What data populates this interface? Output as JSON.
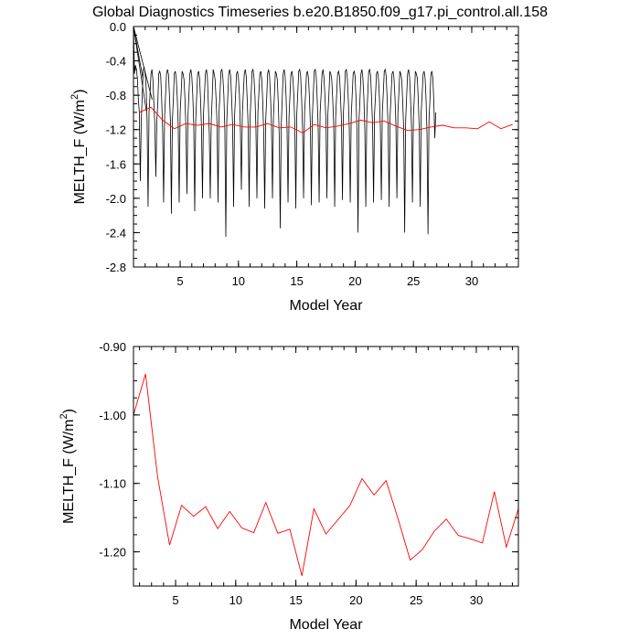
{
  "title": "Global Diagnostics Timeseries b.e20.B1850.f09_g17.pi_control.all.158",
  "colors": {
    "monthly": "#000000",
    "annual": "#ff0000",
    "frame": "#000000"
  },
  "chart_data": [
    {
      "type": "line",
      "name": "top",
      "xlabel": "Model Year",
      "ylabel_main": "MELTH_F (W/m",
      "ylabel_sup": "2",
      "ylabel_close": ")",
      "xlim": [
        1,
        34
      ],
      "ylim": [
        -2.8,
        0.0
      ],
      "xticks": [
        5,
        10,
        15,
        20,
        25,
        30
      ],
      "xtick_labels": [
        "5",
        "10",
        "15",
        "20",
        "25",
        "30"
      ],
      "yticks": [
        0.0,
        -0.4,
        -0.8,
        -1.2,
        -1.6,
        -2.0,
        -2.4,
        -2.8
      ],
      "ytick_labels": [
        "0.0",
        "-0.4",
        "-0.8",
        "-1.2",
        "-1.6",
        "-2.0",
        "-2.4",
        "-2.8"
      ],
      "monthly_start": 1.0,
      "monthly_step": 0.083333,
      "monthly_values": [
        0.0,
        -0.55,
        -0.45,
        -0.5,
        -0.6,
        -0.85,
        -1.0,
        -1.8,
        -1.1,
        -0.8,
        -0.5,
        -0.48,
        -0.55,
        -0.7,
        -1.1,
        -2.1,
        -1.0,
        -0.8,
        -0.55,
        -0.5,
        -0.62,
        -0.9,
        -1.15,
        -1.75,
        -1.1,
        -0.9,
        -0.55,
        -0.52,
        -0.58,
        -0.85,
        -1.2,
        -2.05,
        -1.05,
        -0.8,
        -0.55,
        -0.5,
        -0.56,
        -0.8,
        -1.1,
        -2.18,
        -1.1,
        -0.85,
        -0.55,
        -0.52,
        -0.6,
        -0.82,
        -1.15,
        -2.05,
        -1.0,
        -0.78,
        -0.52,
        -0.55,
        -0.62,
        -0.85,
        -1.2,
        -1.95,
        -1.05,
        -0.8,
        -0.55,
        -0.5,
        -0.58,
        -0.8,
        -1.15,
        -2.15,
        -1.1,
        -0.82,
        -0.55,
        -0.52,
        -0.6,
        -0.85,
        -1.2,
        -2.0,
        -1.02,
        -0.8,
        -0.55,
        -0.5,
        -0.58,
        -0.9,
        -1.25,
        -2.0,
        -1.1,
        -0.82,
        -0.5,
        -0.55,
        -0.62,
        -0.85,
        -1.15,
        -2.05,
        -1.0,
        -0.78,
        -0.52,
        -0.5,
        -0.6,
        -0.8,
        -1.2,
        -2.45,
        -1.1,
        -0.82,
        -0.55,
        -0.5,
        -0.58,
        -0.85,
        -1.15,
        -2.1,
        -1.05,
        -0.8,
        -0.55,
        -0.52,
        -0.6,
        -0.8,
        -1.2,
        -1.9,
        -1.02,
        -0.78,
        -0.55,
        -0.5,
        -0.58,
        -0.85,
        -1.18,
        -2.1,
        -1.05,
        -0.8,
        -0.52,
        -0.5,
        -0.6,
        -0.82,
        -1.2,
        -2.0,
        -1.0,
        -0.78,
        -0.55,
        -0.52,
        -0.62,
        -0.88,
        -1.25,
        -2.12,
        -1.1,
        -0.85,
        -0.55,
        -0.5,
        -0.58,
        -0.82,
        -1.15,
        -2.0,
        -1.05,
        -0.8,
        -0.52,
        -0.55,
        -0.62,
        -0.9,
        -1.3,
        -2.35,
        -1.15,
        -0.85,
        -0.55,
        -0.5,
        -0.58,
        -0.82,
        -1.2,
        -2.05,
        -1.05,
        -0.8,
        -0.55,
        -0.52,
        -0.6,
        -0.8,
        -1.15,
        -2.12,
        -1.02,
        -0.78,
        -0.52,
        -0.5,
        -0.58,
        -0.85,
        -1.2,
        -2.0,
        -1.0,
        -0.8,
        -0.55,
        -0.52,
        -0.6,
        -0.82,
        -1.15,
        -2.08,
        -1.05,
        -0.78,
        -0.52,
        -0.5,
        -0.58,
        -0.85,
        -1.18,
        -2.05,
        -1.0,
        -0.8,
        -0.55,
        -0.5,
        -0.6,
        -0.82,
        -1.1,
        -2.0,
        -1.02,
        -0.8,
        -0.52,
        -0.55,
        -0.62,
        -0.85,
        -1.15,
        -2.1,
        -1.05,
        -0.8,
        -0.55,
        -0.52,
        -0.58,
        -0.82,
        -1.12,
        -2.02,
        -1.0,
        -0.78,
        -0.52,
        -0.5,
        -0.6,
        -0.85,
        -1.18,
        -2.05,
        -1.05,
        -0.8,
        -0.55,
        -0.52,
        -0.58,
        -0.85,
        -1.25,
        -2.4,
        -1.1,
        -0.85,
        -0.55,
        -0.5,
        -0.6,
        -0.82,
        -1.2,
        -2.1,
        -1.05,
        -0.8,
        -0.52,
        -0.5,
        -0.58,
        -0.85,
        -1.15,
        -2.05,
        -1.02,
        -0.8,
        -0.55,
        -0.52,
        -0.6,
        -0.82,
        -1.18,
        -2.02,
        -1.0,
        -0.78,
        -0.52,
        -0.5,
        -0.58,
        -0.85,
        -1.2,
        -2.1,
        -1.05,
        -0.8,
        -0.55,
        -0.52,
        -0.6,
        -0.82,
        -1.15,
        -2.0,
        -1.02,
        -0.78,
        -0.52,
        -0.55,
        -0.62,
        -0.88,
        -1.2,
        -2.4,
        -1.1,
        -0.82,
        -0.55,
        -0.5,
        -0.58,
        -0.82,
        -1.15,
        -2.05,
        -1.05,
        -0.8,
        -0.52,
        -0.55,
        -0.6,
        -0.85,
        -1.2,
        -2.1,
        -1.0,
        -0.78,
        -0.55,
        -0.52,
        -0.6,
        -0.85,
        -1.25,
        -2.42,
        -1.1,
        -0.85,
        -0.55,
        -0.52,
        -0.6,
        -0.88,
        -1.3,
        -1.0
      ],
      "fan_lines": [
        [
          [
            1.0,
            0.0
          ],
          [
            2.6,
            -0.85
          ]
        ],
        [
          [
            1.0,
            0.0
          ],
          [
            2.1,
            -0.98
          ]
        ],
        [
          [
            1.0,
            0.0
          ],
          [
            1.8,
            -0.6
          ]
        ]
      ],
      "annual_x": [
        1.5,
        2.5,
        3.5,
        4.5,
        5.5,
        6.5,
        7.5,
        8.5,
        9.5,
        10.5,
        11.5,
        12.5,
        13.5,
        14.5,
        15.5,
        16.5,
        17.5,
        18.5,
        19.5,
        20.5,
        21.5,
        22.5,
        23.5,
        24.5,
        25.5,
        26.5,
        27.5,
        28.5,
        29.5,
        30.5,
        31.5,
        32.5,
        33.5
      ],
      "annual_values": [
        -1.0,
        -0.94,
        -1.09,
        -1.19,
        -1.13,
        -1.15,
        -1.13,
        -1.17,
        -1.14,
        -1.17,
        -1.17,
        -1.13,
        -1.18,
        -1.17,
        -1.24,
        -1.14,
        -1.18,
        -1.16,
        -1.13,
        -1.09,
        -1.12,
        -1.1,
        -1.16,
        -1.21,
        -1.2,
        -1.17,
        -1.15,
        -1.18,
        -1.18,
        -1.19,
        -1.11,
        -1.19,
        -1.14
      ]
    },
    {
      "type": "line",
      "name": "bottom",
      "xlabel": "Model Year",
      "ylabel_main": "MELTH_F (W/m",
      "ylabel_sup": "2",
      "ylabel_close": ")",
      "xlim": [
        1.5,
        33.5
      ],
      "ylim": [
        -1.25,
        -0.9
      ],
      "xticks": [
        5,
        10,
        15,
        20,
        25,
        30
      ],
      "xtick_labels": [
        "5",
        "10",
        "15",
        "20",
        "25",
        "30"
      ],
      "yticks": [
        -0.9,
        -1.0,
        -1.1,
        -1.2
      ],
      "ytick_labels": [
        "-0.90",
        "-1.00",
        "-1.10",
        "-1.20"
      ],
      "x": [
        1.5,
        2.5,
        3.5,
        4.5,
        5.5,
        6.5,
        7.5,
        8.5,
        9.5,
        10.5,
        11.5,
        12.5,
        13.5,
        14.5,
        15.5,
        16.5,
        17.5,
        18.5,
        19.5,
        20.5,
        21.5,
        22.5,
        23.5,
        24.5,
        25.5,
        26.5,
        27.5,
        28.5,
        29.5,
        30.5,
        31.5,
        32.5,
        33.5
      ],
      "values": [
        -1.0,
        -0.94,
        -1.09,
        -1.19,
        -1.132,
        -1.148,
        -1.134,
        -1.166,
        -1.141,
        -1.165,
        -1.172,
        -1.128,
        -1.173,
        -1.167,
        -1.235,
        -1.137,
        -1.174,
        -1.153,
        -1.132,
        -1.093,
        -1.117,
        -1.096,
        -1.152,
        -1.212,
        -1.197,
        -1.17,
        -1.152,
        -1.176,
        -1.181,
        -1.187,
        -1.112,
        -1.193,
        -1.137
      ]
    }
  ]
}
